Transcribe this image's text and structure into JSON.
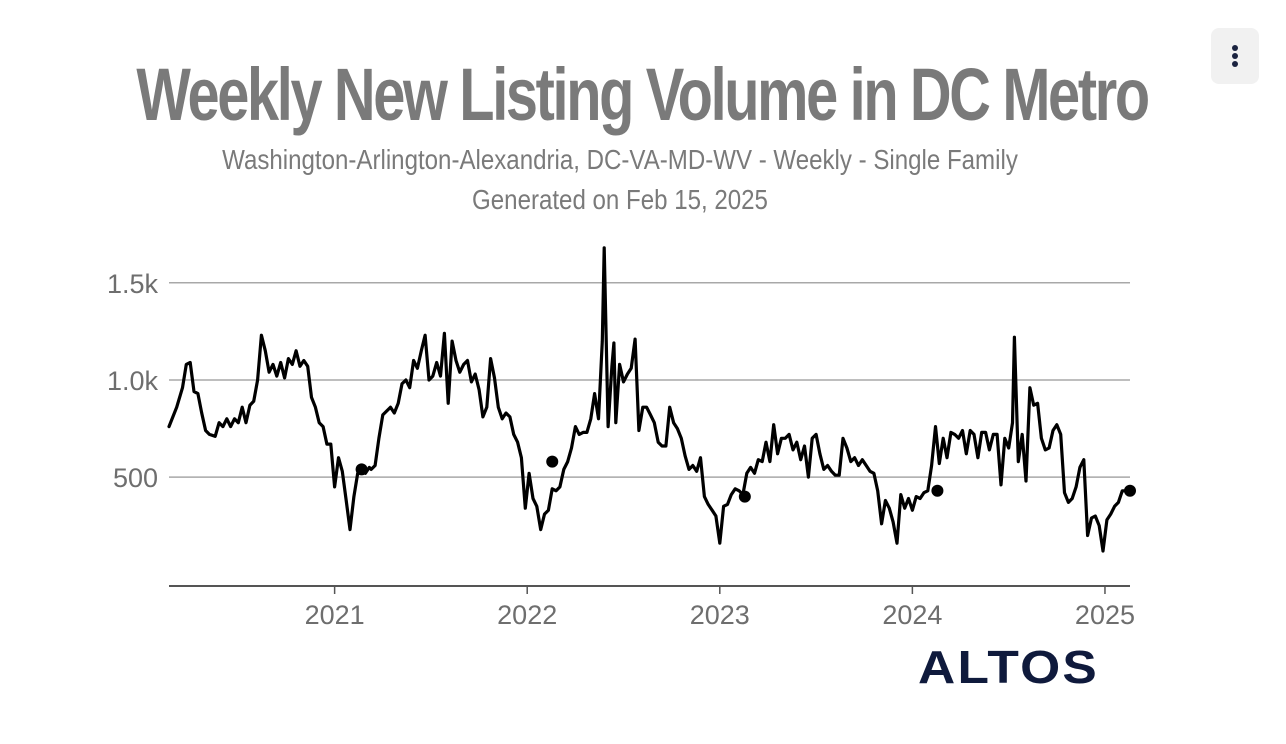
{
  "chart_data": {
    "type": "line",
    "title": "Weekly New Listing Volume in DC Metro",
    "subtitle": "Washington-Arlington-Alexandria, DC-VA-MD-WV - Weekly - Single Family",
    "generated": "Generated on Feb 15, 2025",
    "xlabel": "",
    "ylabel": "",
    "x_ticks": [
      "2021",
      "2022",
      "2023",
      "2024",
      "2025"
    ],
    "y_ticks": [
      "500",
      "1.0k",
      "1.5k"
    ],
    "y_tick_values": [
      500,
      1000,
      1500
    ],
    "ylim": [
      -60,
      1720
    ],
    "xlim": [
      2020.14,
      2025.13
    ],
    "grid": "horizontal",
    "series": [
      {
        "color": "#000000",
        "points": [
          [
            2020.14,
            760
          ],
          [
            2020.18,
            860
          ],
          [
            2020.21,
            960
          ],
          [
            2020.23,
            1080
          ],
          [
            2020.25,
            1090
          ],
          [
            2020.27,
            940
          ],
          [
            2020.29,
            930
          ],
          [
            2020.31,
            830
          ],
          [
            2020.33,
            740
          ],
          [
            2020.35,
            720
          ],
          [
            2020.38,
            710
          ],
          [
            2020.4,
            780
          ],
          [
            2020.42,
            760
          ],
          [
            2020.44,
            800
          ],
          [
            2020.46,
            760
          ],
          [
            2020.48,
            800
          ],
          [
            2020.5,
            780
          ],
          [
            2020.52,
            860
          ],
          [
            2020.54,
            780
          ],
          [
            2020.56,
            870
          ],
          [
            2020.58,
            890
          ],
          [
            2020.6,
            1000
          ],
          [
            2020.62,
            1230
          ],
          [
            2020.64,
            1150
          ],
          [
            2020.66,
            1040
          ],
          [
            2020.68,
            1080
          ],
          [
            2020.7,
            1020
          ],
          [
            2020.72,
            1090
          ],
          [
            2020.74,
            1010
          ],
          [
            2020.76,
            1110
          ],
          [
            2020.78,
            1080
          ],
          [
            2020.8,
            1150
          ],
          [
            2020.82,
            1070
          ],
          [
            2020.84,
            1100
          ],
          [
            2020.86,
            1070
          ],
          [
            2020.88,
            910
          ],
          [
            2020.9,
            860
          ],
          [
            2020.92,
            780
          ],
          [
            2020.94,
            760
          ],
          [
            2020.96,
            670
          ],
          [
            2020.98,
            670
          ],
          [
            2021.0,
            450
          ],
          [
            2021.02,
            600
          ],
          [
            2021.04,
            530
          ],
          [
            2021.06,
            380
          ],
          [
            2021.08,
            230
          ],
          [
            2021.1,
            400
          ],
          [
            2021.12,
            520
          ],
          [
            2021.14,
            550
          ],
          [
            2021.16,
            520
          ],
          [
            2021.18,
            550
          ],
          [
            2021.19,
            540
          ],
          [
            2021.21,
            560
          ],
          [
            2021.23,
            700
          ],
          [
            2021.25,
            820
          ],
          [
            2021.27,
            840
          ],
          [
            2021.29,
            860
          ],
          [
            2021.31,
            830
          ],
          [
            2021.33,
            880
          ],
          [
            2021.35,
            980
          ],
          [
            2021.37,
            1000
          ],
          [
            2021.39,
            960
          ],
          [
            2021.41,
            1100
          ],
          [
            2021.43,
            1060
          ],
          [
            2021.45,
            1150
          ],
          [
            2021.47,
            1230
          ],
          [
            2021.49,
            1000
          ],
          [
            2021.51,
            1020
          ],
          [
            2021.53,
            1090
          ],
          [
            2021.55,
            1020
          ],
          [
            2021.57,
            1240
          ],
          [
            2021.59,
            880
          ],
          [
            2021.61,
            1200
          ],
          [
            2021.63,
            1100
          ],
          [
            2021.65,
            1040
          ],
          [
            2021.67,
            1080
          ],
          [
            2021.69,
            1100
          ],
          [
            2021.71,
            990
          ],
          [
            2021.73,
            1030
          ],
          [
            2021.75,
            950
          ],
          [
            2021.77,
            810
          ],
          [
            2021.79,
            860
          ],
          [
            2021.81,
            1110
          ],
          [
            2021.83,
            1010
          ],
          [
            2021.85,
            860
          ],
          [
            2021.87,
            800
          ],
          [
            2021.89,
            830
          ],
          [
            2021.91,
            810
          ],
          [
            2021.93,
            720
          ],
          [
            2021.95,
            680
          ],
          [
            2021.97,
            600
          ],
          [
            2021.99,
            340
          ],
          [
            2022.01,
            520
          ],
          [
            2022.03,
            390
          ],
          [
            2022.05,
            350
          ],
          [
            2022.07,
            230
          ],
          [
            2022.09,
            310
          ],
          [
            2022.11,
            330
          ],
          [
            2022.13,
            440
          ],
          [
            2022.15,
            430
          ],
          [
            2022.17,
            450
          ],
          [
            2022.19,
            540
          ],
          [
            2022.21,
            580
          ],
          [
            2022.23,
            650
          ],
          [
            2022.25,
            760
          ],
          [
            2022.27,
            720
          ],
          [
            2022.29,
            730
          ],
          [
            2022.31,
            730
          ],
          [
            2022.33,
            800
          ],
          [
            2022.35,
            930
          ],
          [
            2022.37,
            800
          ],
          [
            2022.39,
            1200
          ],
          [
            2022.4,
            1680
          ],
          [
            2022.42,
            760
          ],
          [
            2022.44,
            1070
          ],
          [
            2022.45,
            1190
          ],
          [
            2022.46,
            780
          ],
          [
            2022.48,
            1080
          ],
          [
            2022.5,
            990
          ],
          [
            2022.52,
            1030
          ],
          [
            2022.54,
            1060
          ],
          [
            2022.56,
            1210
          ],
          [
            2022.58,
            740
          ],
          [
            2022.6,
            860
          ],
          [
            2022.62,
            860
          ],
          [
            2022.64,
            820
          ],
          [
            2022.66,
            780
          ],
          [
            2022.68,
            680
          ],
          [
            2022.7,
            660
          ],
          [
            2022.72,
            660
          ],
          [
            2022.74,
            860
          ],
          [
            2022.76,
            780
          ],
          [
            2022.78,
            750
          ],
          [
            2022.8,
            700
          ],
          [
            2022.82,
            610
          ],
          [
            2022.84,
            540
          ],
          [
            2022.86,
            560
          ],
          [
            2022.88,
            530
          ],
          [
            2022.9,
            600
          ],
          [
            2022.92,
            400
          ],
          [
            2022.94,
            360
          ],
          [
            2022.96,
            330
          ],
          [
            2022.98,
            300
          ],
          [
            2023.0,
            160
          ],
          [
            2023.02,
            350
          ],
          [
            2023.04,
            360
          ],
          [
            2023.06,
            410
          ],
          [
            2023.08,
            440
          ],
          [
            2023.1,
            430
          ],
          [
            2023.12,
            410
          ],
          [
            2023.14,
            520
          ],
          [
            2023.16,
            550
          ],
          [
            2023.18,
            520
          ],
          [
            2023.2,
            590
          ],
          [
            2023.22,
            580
          ],
          [
            2023.24,
            680
          ],
          [
            2023.26,
            580
          ],
          [
            2023.28,
            770
          ],
          [
            2023.3,
            620
          ],
          [
            2023.32,
            700
          ],
          [
            2023.34,
            700
          ],
          [
            2023.36,
            720
          ],
          [
            2023.38,
            640
          ],
          [
            2023.4,
            680
          ],
          [
            2023.42,
            590
          ],
          [
            2023.44,
            660
          ],
          [
            2023.46,
            500
          ],
          [
            2023.48,
            700
          ],
          [
            2023.5,
            720
          ],
          [
            2023.52,
            620
          ],
          [
            2023.54,
            540
          ],
          [
            2023.56,
            560
          ],
          [
            2023.58,
            530
          ],
          [
            2023.6,
            510
          ],
          [
            2023.62,
            510
          ],
          [
            2023.64,
            700
          ],
          [
            2023.66,
            650
          ],
          [
            2023.68,
            580
          ],
          [
            2023.7,
            600
          ],
          [
            2023.72,
            560
          ],
          [
            2023.74,
            590
          ],
          [
            2023.76,
            560
          ],
          [
            2023.78,
            530
          ],
          [
            2023.8,
            520
          ],
          [
            2023.82,
            430
          ],
          [
            2023.84,
            260
          ],
          [
            2023.86,
            380
          ],
          [
            2023.88,
            340
          ],
          [
            2023.9,
            270
          ],
          [
            2023.92,
            160
          ],
          [
            2023.94,
            410
          ],
          [
            2023.96,
            340
          ],
          [
            2023.98,
            390
          ],
          [
            2024.0,
            330
          ],
          [
            2024.02,
            400
          ],
          [
            2024.04,
            390
          ],
          [
            2024.06,
            420
          ],
          [
            2024.08,
            430
          ],
          [
            2024.1,
            560
          ],
          [
            2024.12,
            760
          ],
          [
            2024.14,
            570
          ],
          [
            2024.16,
            700
          ],
          [
            2024.18,
            600
          ],
          [
            2024.2,
            730
          ],
          [
            2024.22,
            720
          ],
          [
            2024.24,
            700
          ],
          [
            2024.26,
            740
          ],
          [
            2024.28,
            620
          ],
          [
            2024.3,
            740
          ],
          [
            2024.32,
            720
          ],
          [
            2024.34,
            600
          ],
          [
            2024.36,
            730
          ],
          [
            2024.38,
            730
          ],
          [
            2024.4,
            640
          ],
          [
            2024.42,
            720
          ],
          [
            2024.44,
            720
          ],
          [
            2024.46,
            460
          ],
          [
            2024.48,
            700
          ],
          [
            2024.5,
            650
          ],
          [
            2024.52,
            780
          ],
          [
            2024.53,
            1220
          ],
          [
            2024.55,
            580
          ],
          [
            2024.57,
            720
          ],
          [
            2024.59,
            480
          ],
          [
            2024.61,
            960
          ],
          [
            2024.63,
            870
          ],
          [
            2024.65,
            880
          ],
          [
            2024.67,
            700
          ],
          [
            2024.69,
            640
          ],
          [
            2024.71,
            650
          ],
          [
            2024.73,
            740
          ],
          [
            2024.75,
            770
          ],
          [
            2024.77,
            720
          ],
          [
            2024.79,
            420
          ],
          [
            2024.81,
            370
          ],
          [
            2024.83,
            390
          ],
          [
            2024.85,
            450
          ],
          [
            2024.87,
            550
          ],
          [
            2024.89,
            590
          ],
          [
            2024.91,
            200
          ],
          [
            2024.93,
            290
          ],
          [
            2024.95,
            300
          ],
          [
            2024.97,
            250
          ],
          [
            2024.99,
            120
          ],
          [
            2025.01,
            280
          ],
          [
            2025.03,
            310
          ],
          [
            2025.05,
            350
          ],
          [
            2025.07,
            370
          ],
          [
            2025.09,
            430
          ],
          [
            2025.11,
            430
          ],
          [
            2025.13,
            430
          ]
        ]
      }
    ],
    "markers": [
      [
        2021.14,
        540
      ],
      [
        2022.13,
        580
      ],
      [
        2023.13,
        400
      ],
      [
        2024.13,
        430
      ],
      [
        2025.13,
        430
      ]
    ]
  },
  "logo_text": "ALTOS",
  "menu_icon": "vertical-dots-icon"
}
